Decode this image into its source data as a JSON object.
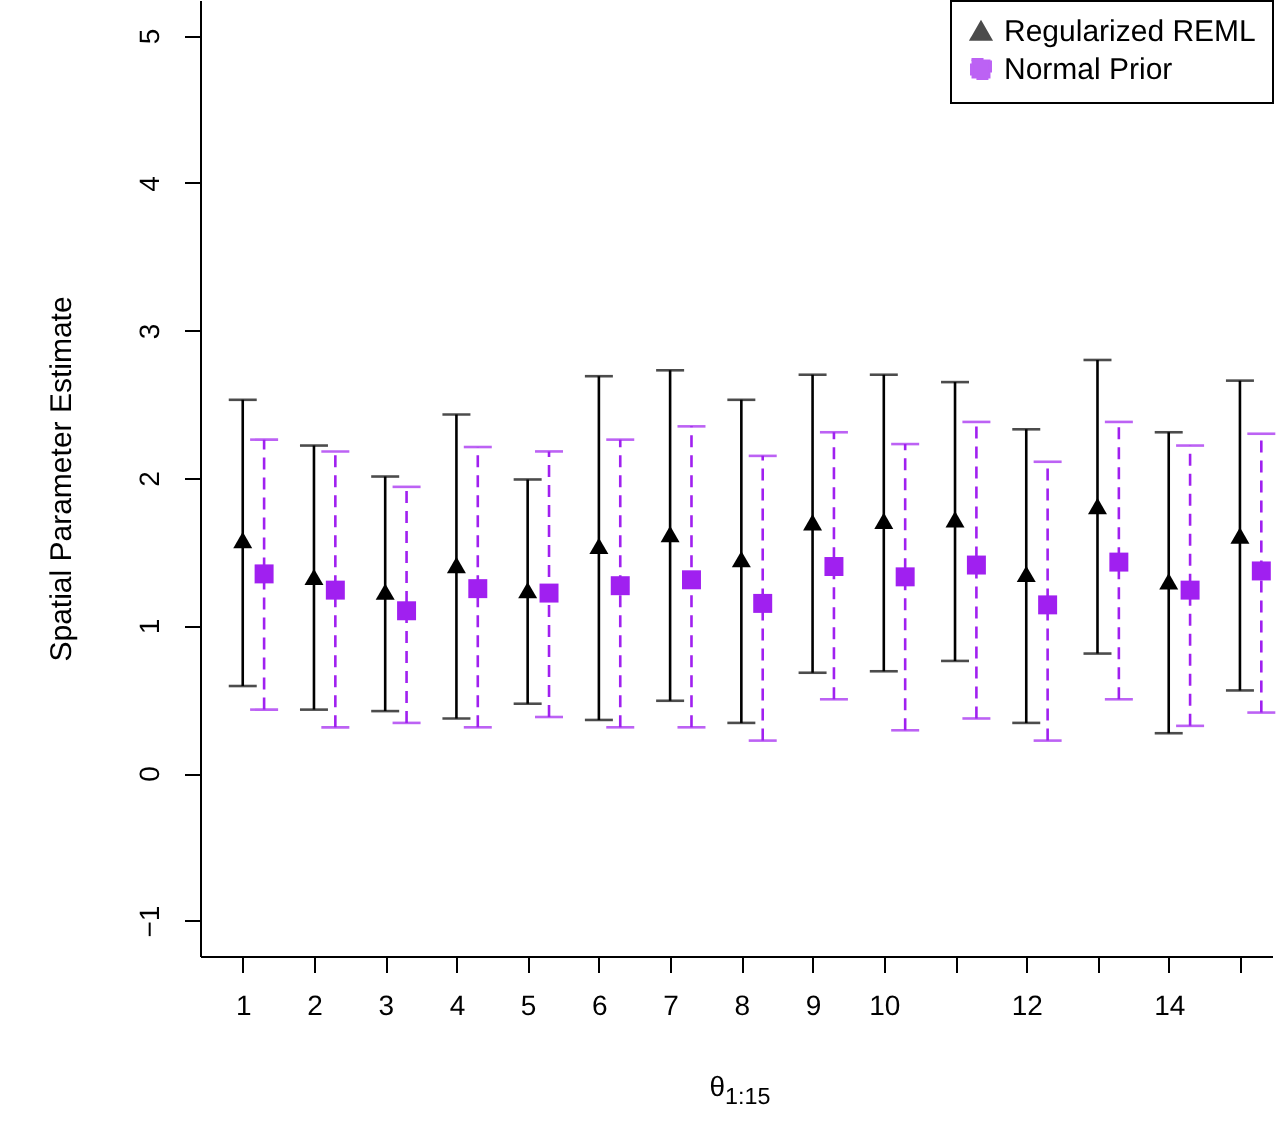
{
  "chart_data": {
    "type": "scatter",
    "xlabel": "θ$_{1:15}$",
    "ylabel": "Spatial Parameter Estimate",
    "x": [
      1,
      2,
      3,
      4,
      5,
      6,
      7,
      8,
      9,
      10,
      11,
      12,
      13,
      14,
      15
    ],
    "series": [
      {
        "name": "Regularized REML",
        "color": "#000000",
        "marker": "triangle",
        "line_style": "solid",
        "values": [
          1.58,
          1.33,
          1.23,
          1.41,
          1.24,
          1.54,
          1.62,
          1.45,
          1.7,
          1.71,
          1.72,
          1.35,
          1.81,
          1.3,
          1.61
        ],
        "errors": [
          [
            0.59,
            2.53
          ],
          [
            0.43,
            2.22
          ],
          [
            0.42,
            2.01
          ],
          [
            0.37,
            2.43
          ],
          [
            0.47,
            1.99
          ],
          [
            0.36,
            2.69
          ],
          [
            0.49,
            2.73
          ],
          [
            0.34,
            2.53
          ],
          [
            0.68,
            2.7
          ],
          [
            0.69,
            2.7
          ],
          [
            0.76,
            2.65
          ],
          [
            0.34,
            2.33
          ],
          [
            0.81,
            2.8
          ],
          [
            0.27,
            2.31
          ],
          [
            0.56,
            2.66
          ]
        ]
      },
      {
        "name": "Normal Prior",
        "color": "#a020f0",
        "marker": "square",
        "line_style": "dashed",
        "x": [
          1.3,
          2.3,
          3.3,
          4.3,
          5.3,
          6.3,
          7.3,
          8.3,
          9.3,
          10.3,
          11.3,
          12.3,
          13.3,
          14.3,
          15.3
        ],
        "values": [
          1.35,
          1.24,
          1.1,
          1.25,
          1.22,
          1.27,
          1.31,
          1.15,
          1.4,
          1.33,
          1.41,
          1.14,
          1.43,
          1.24,
          1.37
        ],
        "errors": [
          [
            0.43,
            2.26
          ],
          [
            0.31,
            2.18
          ],
          [
            0.34,
            1.94
          ],
          [
            0.31,
            2.21
          ],
          [
            0.38,
            2.18
          ],
          [
            0.31,
            2.26
          ],
          [
            0.31,
            2.35
          ],
          [
            0.22,
            2.15
          ],
          [
            0.5,
            2.31
          ],
          [
            0.29,
            2.23
          ],
          [
            0.37,
            2.38
          ],
          [
            0.22,
            2.11
          ],
          [
            0.5,
            2.38
          ],
          [
            0.32,
            2.22
          ],
          [
            0.41,
            2.3
          ]
        ]
      }
    ],
    "xlim": [
      0.4,
      15.45
    ],
    "xticks": [
      1,
      2,
      3,
      4,
      5,
      6,
      7,
      8,
      9,
      10,
      {
        "value": 11,
        "label": null
      },
      12,
      {
        "value": 13,
        "label": null
      },
      14,
      {
        "value": 15,
        "label": null
      }
    ],
    "ylim": [
      -1.24,
      5.24
    ],
    "yticks": [
      {
        "value": -1,
        "label": "−1"
      },
      {
        "value": 0,
        "label": "0"
      },
      {
        "value": 1,
        "label": "1"
      },
      {
        "value": 2,
        "label": "2"
      },
      {
        "value": 3,
        "label": "3"
      },
      {
        "value": 4,
        "label": "4"
      },
      {
        "value": 5,
        "label": "5"
      }
    ],
    "grid": false,
    "legend": "top right"
  }
}
